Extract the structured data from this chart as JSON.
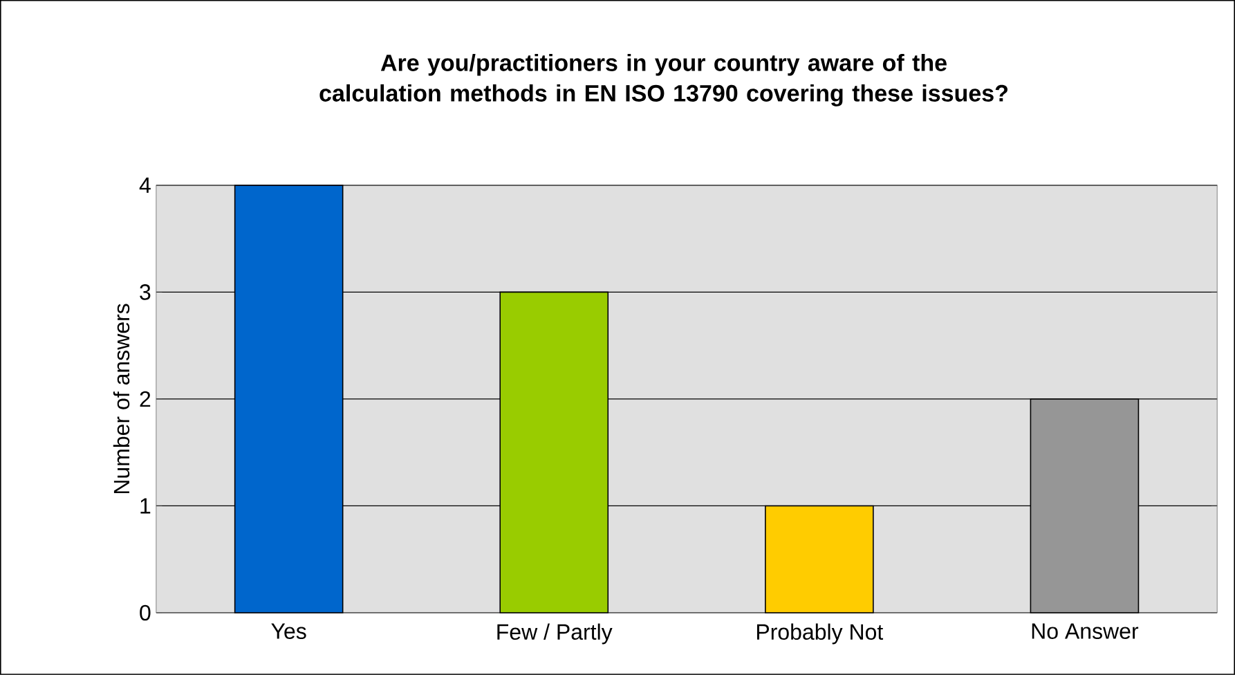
{
  "chart_data": {
    "type": "bar",
    "title": "Are you/practitioners in your country aware of the calculation methods in EN ISO 13790 covering these issues?",
    "ylabel": "Number of answers",
    "categories": [
      "Yes",
      "Few / Partly",
      "Probably Not",
      "No Answer"
    ],
    "values": [
      4,
      3,
      1,
      2
    ],
    "colors": [
      "#0066cc",
      "#99cc00",
      "#ffcc00",
      "#969696"
    ],
    "ylim": [
      0,
      4
    ],
    "yticks": [
      0,
      1,
      2,
      3,
      4
    ],
    "grid": "y"
  }
}
